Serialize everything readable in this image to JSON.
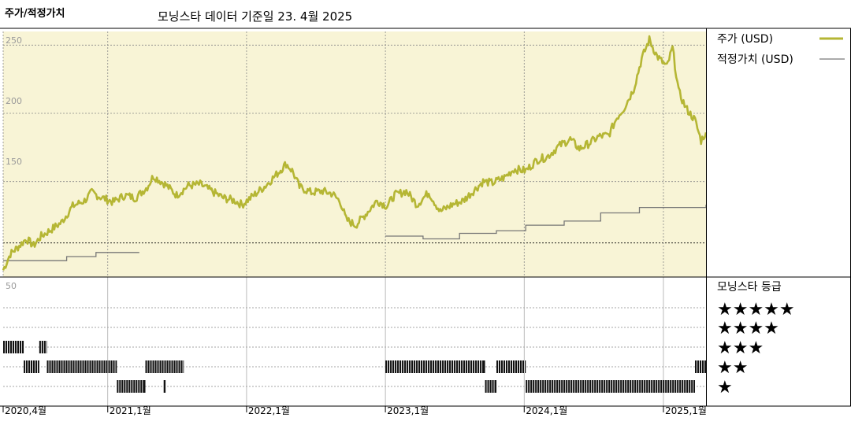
{
  "header": {
    "title": "주가/적정가치",
    "subtitle": "모닝스타 데이터 기준일 23. 4월 2025"
  },
  "colors": {
    "panel_bg": "#f8f4d6",
    "price_line": "#b5b634",
    "fair_value_line": "#777777",
    "grid": "#888888"
  },
  "chart_data": [
    {
      "type": "line",
      "ylim": [
        80,
        260
      ],
      "yticks": [
        "250",
        "200",
        "150"
      ],
      "ytick_values": [
        250,
        200,
        150
      ],
      "reference_line": 105,
      "x_range": [
        "2020-04-01",
        "2025-04-23"
      ],
      "x_ticks": [
        {
          "date": "2020-04-01",
          "label": "2020,4월"
        },
        {
          "date": "2021-01-01",
          "label": "2021,1월"
        },
        {
          "date": "2022-01-01",
          "label": "2022,1월"
        },
        {
          "date": "2023-01-01",
          "label": "2023,1월"
        },
        {
          "date": "2024-01-01",
          "label": "2024,1월"
        },
        {
          "date": "2025-01-01",
          "label": "2025,1월"
        }
      ],
      "series": [
        {
          "name": "주가 (USD)",
          "points": [
            [
              "2020-04-01",
              85
            ],
            [
              "2020-04-20",
              97
            ],
            [
              "2020-05-10",
              102
            ],
            [
              "2020-06-01",
              108
            ],
            [
              "2020-06-20",
              103
            ],
            [
              "2020-07-10",
              110
            ],
            [
              "2020-08-01",
              114
            ],
            [
              "2020-09-01",
              120
            ],
            [
              "2020-10-01",
              132
            ],
            [
              "2020-11-01",
              136
            ],
            [
              "2020-11-20",
              142
            ],
            [
              "2020-12-10",
              139
            ],
            [
              "2021-01-15",
              135
            ],
            [
              "2021-02-15",
              140
            ],
            [
              "2021-03-15",
              138
            ],
            [
              "2021-04-15",
              146
            ],
            [
              "2021-05-01",
              154
            ],
            [
              "2021-06-01",
              148
            ],
            [
              "2021-07-01",
              140
            ],
            [
              "2021-08-01",
              147
            ],
            [
              "2021-09-01",
              148
            ],
            [
              "2021-10-01",
              143
            ],
            [
              "2021-11-01",
              138
            ],
            [
              "2021-12-01",
              136
            ],
            [
              "2021-12-20",
              133
            ],
            [
              "2022-01-20",
              140
            ],
            [
              "2022-02-20",
              147
            ],
            [
              "2022-03-20",
              155
            ],
            [
              "2022-04-15",
              163
            ],
            [
              "2022-05-01",
              158
            ],
            [
              "2022-05-20",
              146
            ],
            [
              "2022-06-20",
              142
            ],
            [
              "2022-07-20",
              143
            ],
            [
              "2022-08-15",
              141
            ],
            [
              "2022-09-05",
              135
            ],
            [
              "2022-09-20",
              122
            ],
            [
              "2022-10-15",
              118
            ],
            [
              "2022-11-10",
              126
            ],
            [
              "2022-12-10",
              136
            ],
            [
              "2023-01-05",
              132
            ],
            [
              "2023-01-25",
              140
            ],
            [
              "2023-02-25",
              143
            ],
            [
              "2023-03-25",
              133
            ],
            [
              "2023-04-25",
              142
            ],
            [
              "2023-05-25",
              128
            ],
            [
              "2023-06-25",
              133
            ],
            [
              "2023-07-25",
              136
            ],
            [
              "2023-08-20",
              143
            ],
            [
              "2023-09-15",
              150
            ],
            [
              "2023-10-10",
              149
            ],
            [
              "2023-11-10",
              153
            ],
            [
              "2023-12-05",
              159
            ],
            [
              "2024-01-05",
              158
            ],
            [
              "2024-02-05",
              166
            ],
            [
              "2024-03-01",
              168
            ],
            [
              "2024-04-01",
              176
            ],
            [
              "2024-05-01",
              181
            ],
            [
              "2024-05-25",
              174
            ],
            [
              "2024-06-20",
              178
            ],
            [
              "2024-07-15",
              183
            ],
            [
              "2024-08-10",
              184
            ],
            [
              "2024-09-01",
              197
            ],
            [
              "2024-09-20",
              204
            ],
            [
              "2024-10-15",
              218
            ],
            [
              "2024-11-05",
              240
            ],
            [
              "2024-11-25",
              254
            ],
            [
              "2024-12-15",
              242
            ],
            [
              "2025-01-10",
              234
            ],
            [
              "2025-01-25",
              248
            ],
            [
              "2025-02-10",
              216
            ],
            [
              "2025-03-01",
              204
            ],
            [
              "2025-03-25",
              195
            ],
            [
              "2025-04-10",
              180
            ],
            [
              "2025-04-23",
              186
            ]
          ]
        },
        {
          "name": "적정가치 (USD)",
          "segments": [
            [
              [
                "2020-04-01",
                92
              ],
              [
                "2020-09-15",
                92
              ],
              [
                "2020-09-15",
                95
              ],
              [
                "2020-12-01",
                95
              ],
              [
                "2020-12-01",
                98
              ],
              [
                "2021-03-25",
                98
              ]
            ],
            [
              [
                "2023-01-01",
                110
              ],
              [
                "2023-04-10",
                110
              ],
              [
                "2023-04-10",
                108
              ],
              [
                "2023-07-15",
                108
              ],
              [
                "2023-07-15",
                112
              ],
              [
                "2023-10-20",
                112
              ],
              [
                "2023-10-20",
                114
              ],
              [
                "2024-01-05",
                114
              ],
              [
                "2024-01-05",
                118
              ],
              [
                "2024-04-15",
                118
              ],
              [
                "2024-04-15",
                121
              ],
              [
                "2024-07-20",
                121
              ],
              [
                "2024-07-20",
                127
              ],
              [
                "2024-10-30",
                127
              ],
              [
                "2024-10-30",
                131
              ],
              [
                "2025-04-23",
                131
              ],
              [
                "2025-04-23",
                133
              ]
            ]
          ]
        }
      ]
    },
    {
      "type": "rating_timeline",
      "title": "모닝스타 등급",
      "ytick": "50",
      "ratings": [
        {
          "stars": 5,
          "label": "★★★★★",
          "periods": []
        },
        {
          "stars": 4,
          "label": "★★★★",
          "periods": []
        },
        {
          "stars": 3,
          "label": "★★★",
          "periods": [
            [
              "2020-04-01",
              "2020-05-25"
            ],
            [
              "2020-07-05",
              "2020-07-25"
            ]
          ]
        },
        {
          "stars": 2,
          "label": "★★",
          "periods": [
            [
              "2020-05-25",
              "2020-07-05"
            ],
            [
              "2020-07-25",
              "2021-01-25"
            ],
            [
              "2021-04-10",
              "2021-07-20"
            ],
            [
              "2023-01-01",
              "2023-09-20"
            ],
            [
              "2023-10-20",
              "2024-01-05"
            ],
            [
              "2025-03-25",
              "2025-04-23"
            ]
          ]
        },
        {
          "stars": 1,
          "label": "★",
          "periods": [
            [
              "2021-01-25",
              "2021-04-10"
            ],
            [
              "2021-05-28",
              "2021-06-02"
            ],
            [
              "2023-09-20",
              "2023-10-20"
            ],
            [
              "2024-01-05",
              "2025-03-25"
            ]
          ]
        }
      ]
    }
  ]
}
